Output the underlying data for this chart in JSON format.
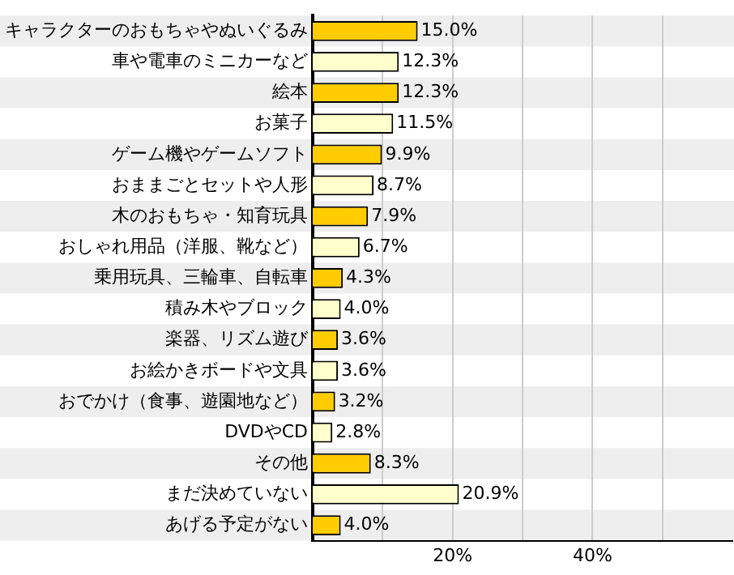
{
  "chart_data": {
    "type": "bar",
    "orientation": "horizontal",
    "categories": [
      "キャラクターのおもちゃやぬいぐるみ",
      "車や電車のミニカーなど",
      "絵本",
      "お菓子",
      "ゲーム機やゲームソフト",
      "おままごとセットや人形",
      "木のおもちゃ・知育玩具",
      "おしゃれ用品（洋服、靴など）",
      "乗用玩具、三輪車、自転車",
      "積み木やブロック",
      "楽器、リズム遊び",
      "お絵かきボードや文具",
      "おでかけ（食事、遊園地など）",
      "DVDやCD",
      "その他",
      "まだ決めていない",
      "あげる予定がない"
    ],
    "values": [
      15.0,
      12.3,
      12.3,
      11.5,
      9.9,
      8.7,
      7.9,
      6.7,
      4.3,
      4.0,
      3.6,
      3.6,
      3.2,
      2.8,
      8.3,
      20.9,
      4.0
    ],
    "colors": [
      "#ffcc00",
      "#ffffcc",
      "#ffcc00",
      "#ffffcc",
      "#ffcc00",
      "#ffffcc",
      "#ffcc00",
      "#ffffcc",
      "#ffcc00",
      "#ffffcc",
      "#ffcc00",
      "#ffffcc",
      "#ffcc00",
      "#ffffcc",
      "#ffcc00",
      "#ffffcc",
      "#ffcc00"
    ],
    "value_labels": [
      "15.0%",
      "12.3%",
      "12.3%",
      "11.5%",
      "9.9%",
      "8.7%",
      "7.9%",
      "6.7%",
      "4.3%",
      "4.0%",
      "3.6%",
      "3.6%",
      "3.2%",
      "2.8%",
      "8.3%",
      "20.9%",
      "4.0%"
    ],
    "xlim": [
      0,
      60
    ],
    "xticks": [
      {
        "value": 10,
        "label": null
      },
      {
        "value": 20,
        "label": "20%"
      },
      {
        "value": 30,
        "label": null
      },
      {
        "value": 40,
        "label": "40%"
      },
      {
        "value": 50,
        "label": null
      }
    ],
    "grid": "x",
    "legend": false
  }
}
